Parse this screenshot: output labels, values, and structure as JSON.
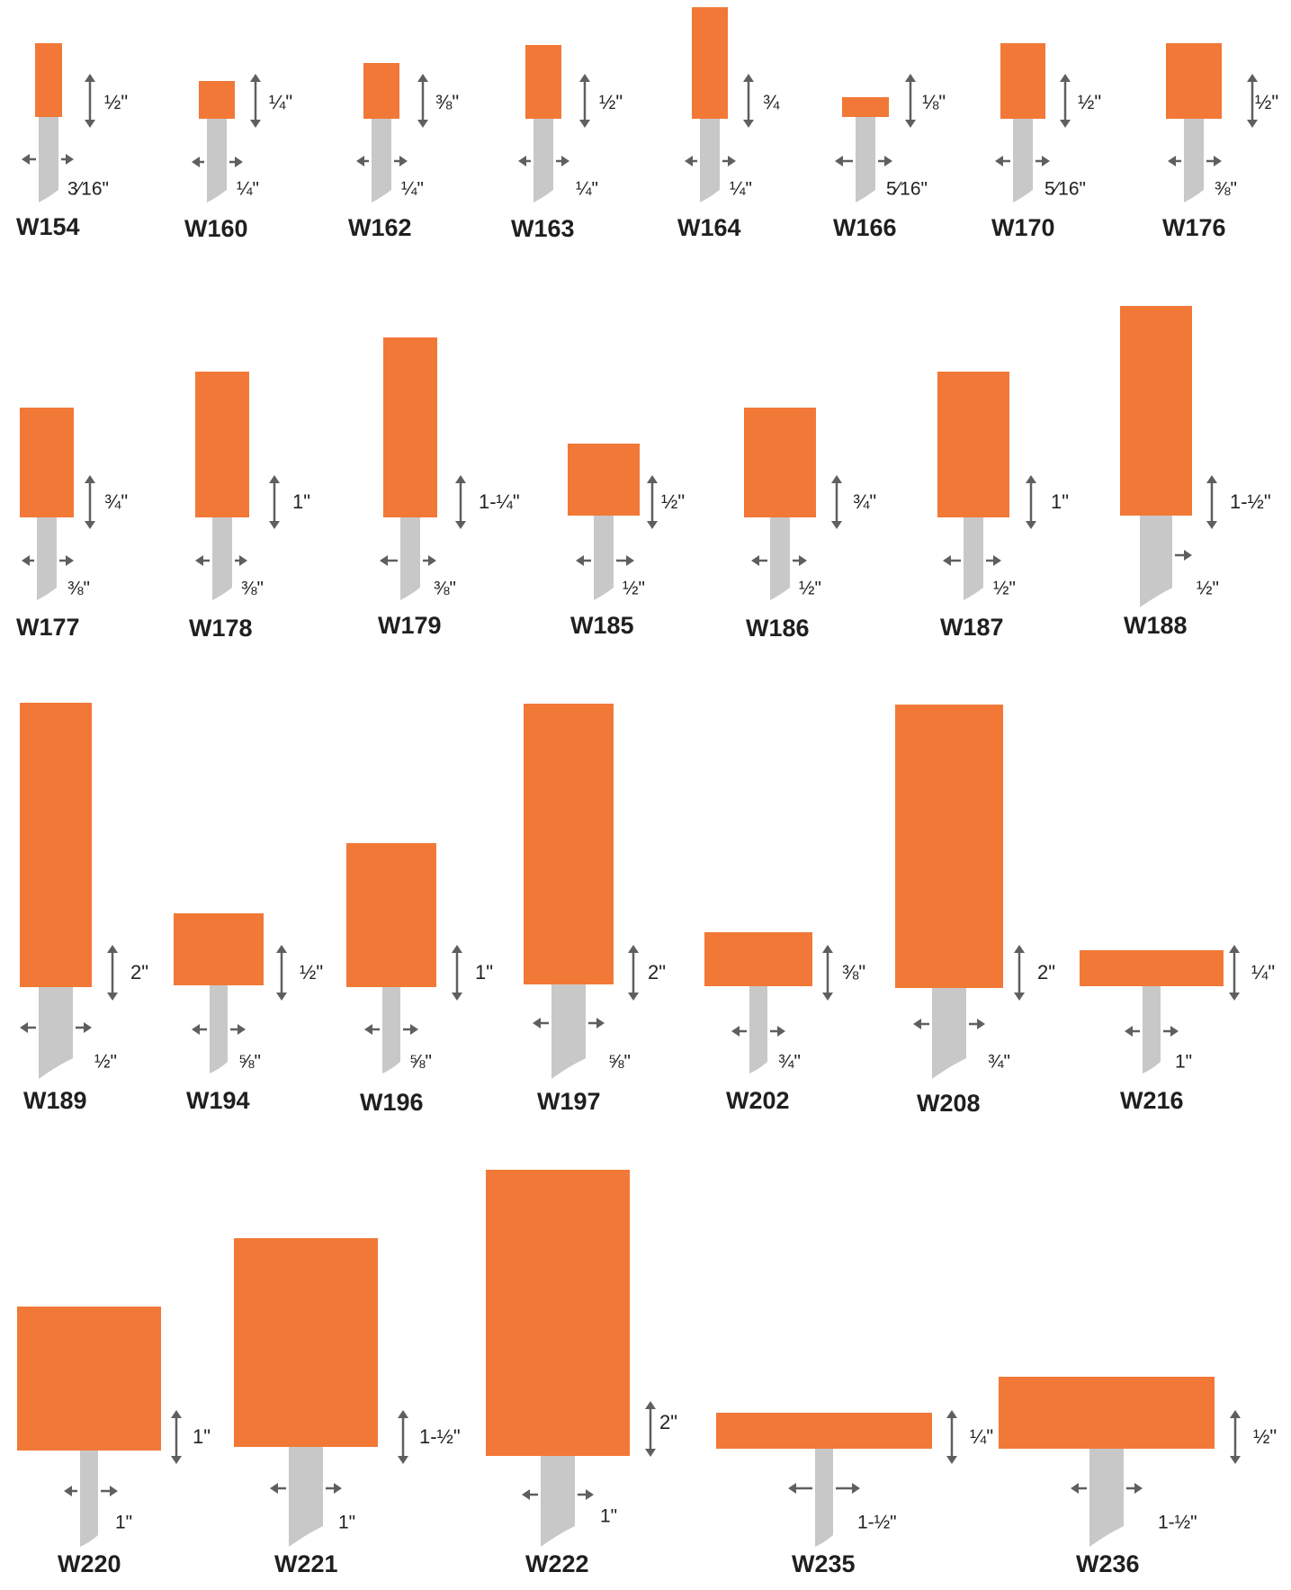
{
  "colors": {
    "head": "#f27837",
    "shank": "#c8c8c8",
    "arrow": "#5f5f5f",
    "text": "#222222"
  },
  "stones": [
    {
      "code": "W154",
      "height": "½\"",
      "shank": "3⁄16\""
    },
    {
      "code": "W160",
      "height": "¼\"",
      "shank": "¼\""
    },
    {
      "code": "W162",
      "height": "⅜\"",
      "shank": "¼\""
    },
    {
      "code": "W163",
      "height": "½\"",
      "shank": "¼\""
    },
    {
      "code": "W164",
      "height": "¾",
      "shank": "¼\""
    },
    {
      "code": "W166",
      "height": "⅛\"",
      "shank": "5⁄16\""
    },
    {
      "code": "W170",
      "height": "½\"",
      "shank": "5⁄16\""
    },
    {
      "code": "W176",
      "height": "½\"",
      "shank": "⅜\""
    },
    {
      "code": "W177",
      "height": "¾\"",
      "shank": "⅜\""
    },
    {
      "code": "W178",
      "height": "1\"",
      "shank": "⅜\""
    },
    {
      "code": "W179",
      "height": "1-¼\"",
      "shank": "⅜\""
    },
    {
      "code": "W185",
      "height": "½\"",
      "shank": "½\""
    },
    {
      "code": "W186",
      "height": "¾\"",
      "shank": "½\""
    },
    {
      "code": "W187",
      "height": "1\"",
      "shank": "½\""
    },
    {
      "code": "W188",
      "height": "1-½\"",
      "shank": "½\""
    },
    {
      "code": "W189",
      "height": "2\"",
      "shank": "½\""
    },
    {
      "code": "W194",
      "height": "½\"",
      "shank": "⅝\""
    },
    {
      "code": "W196",
      "height": "1\"",
      "shank": "⅝\""
    },
    {
      "code": "W197",
      "height": "2\"",
      "shank": "⅝\""
    },
    {
      "code": "W202",
      "height": "⅜\"",
      "shank": "¾\""
    },
    {
      "code": "W208",
      "height": "2\"",
      "shank": "¾\""
    },
    {
      "code": "W216",
      "height": "¼\"",
      "shank": "1\""
    },
    {
      "code": "W220",
      "height": "1\"",
      "shank": "1\""
    },
    {
      "code": "W221",
      "height": "1-½\"",
      "shank": "1\""
    },
    {
      "code": "W222",
      "height": "2\"",
      "shank": "1\""
    },
    {
      "code": "W235",
      "height": "¼\"",
      "shank": "1-½\""
    },
    {
      "code": "W236",
      "height": "½\"",
      "shank": "1-½\""
    }
  ]
}
